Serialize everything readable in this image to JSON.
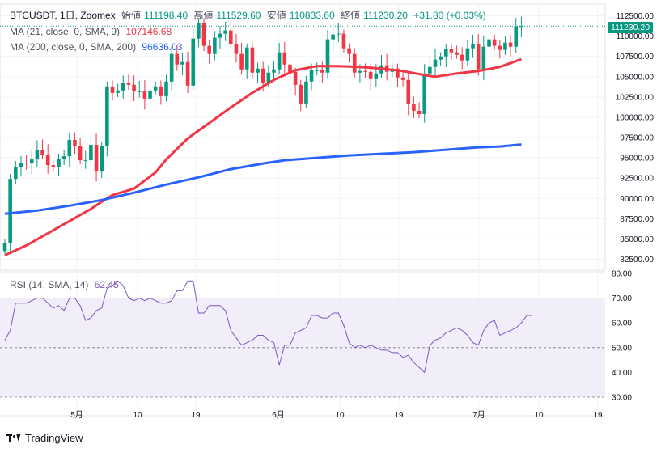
{
  "header": {
    "symbol": "BTCUSDT, 1日, Zoomex",
    "open_label": "始値",
    "open": "111198.40",
    "high_label": "高値",
    "high": "111529.60",
    "low_label": "安値",
    "low": "110833.60",
    "close_label": "終値",
    "close": "111230.20",
    "change": "+31.80 (+0.03%)"
  },
  "indicators": {
    "ma21": {
      "label": "MA (21, close, 0, SMA, 9)",
      "value": "107146.68",
      "color": "#f23645"
    },
    "ma200": {
      "label": "MA (200, close, 0, SMA, 200)",
      "value": "96636.03",
      "color": "#2962ff"
    },
    "rsi": {
      "label": "RSI (14, SMA, 14)",
      "value": "62.45",
      "color": "#7e57c2"
    }
  },
  "price_tag": "111230.20",
  "brand": "TradingView",
  "colors": {
    "up": "#089981",
    "down": "#f23645",
    "grid": "#f0f3fa",
    "rsi_band": "#ede7f6"
  },
  "chart_data": [
    {
      "type": "candlestick",
      "title": "BTCUSDT, 1日, Zoomex",
      "x_tick_labels": [
        "5月",
        "10",
        "19",
        "6月",
        "10",
        "19",
        "7月",
        "10",
        "19"
      ],
      "y_tick_labels": [
        "82500.00",
        "85000.00",
        "87500.00",
        "90000.00",
        "92500.00",
        "95000.00",
        "97500.00",
        "100000.00",
        "102500.00",
        "105000.00",
        "107500.00",
        "110000.00",
        "112500.00"
      ],
      "ylim": [
        81000,
        113000
      ],
      "last_price": 111230.2,
      "closes": [
        84500,
        92400,
        93900,
        94400,
        94300,
        94800,
        96000,
        95300,
        94100,
        93900,
        94900,
        95200,
        97200,
        96400,
        94700,
        94700,
        96600,
        93300,
        96500,
        103800,
        103000,
        103300,
        104200,
        104000,
        103200,
        103200,
        102300,
        103300,
        103800,
        102600,
        104400,
        107800,
        106500,
        106800,
        103900,
        109700,
        111600,
        108800,
        107800,
        109800,
        110300,
        110700,
        109000,
        107800,
        105900,
        108600,
        105500,
        106000,
        104200,
        105500,
        105900,
        108000,
        106500,
        105600,
        104000,
        101700,
        104400,
        105800,
        105800,
        105500,
        109600,
        110200,
        110300,
        108500,
        107800,
        105500,
        105700,
        105600,
        104700,
        105400,
        106400,
        105600,
        106000,
        104900,
        104600,
        101600,
        100800,
        100400,
        105400,
        106200,
        107100,
        107500,
        108400,
        108000,
        107700,
        107000,
        108500,
        109000,
        105900,
        108700,
        109600,
        108800,
        108300,
        109200,
        108700,
        111200,
        111230
      ],
      "series": [
        {
          "name": "MA (21, close, 0, SMA, 9)",
          "values": [
            [
              0,
              83000
            ],
            [
              4,
              84200
            ],
            [
              8,
              85700
            ],
            [
              12,
              87200
            ],
            [
              16,
              88700
            ],
            [
              18,
              89600
            ],
            [
              20,
              90400
            ],
            [
              24,
              91200
            ],
            [
              28,
              93200
            ],
            [
              30,
              94800
            ],
            [
              34,
              97400
            ],
            [
              38,
              99300
            ],
            [
              42,
              101200
            ],
            [
              46,
              103000
            ],
            [
              50,
              104600
            ],
            [
              54,
              105800
            ],
            [
              58,
              106300
            ],
            [
              62,
              106300
            ],
            [
              66,
              106200
            ],
            [
              70,
              106000
            ],
            [
              74,
              105700
            ],
            [
              78,
              105200
            ],
            [
              80,
              105000
            ],
            [
              84,
              105400
            ],
            [
              88,
              105700
            ],
            [
              92,
              106200
            ],
            [
              96,
              107150
            ]
          ]
        },
        {
          "name": "MA (200, close, 0, SMA, 200)",
          "values": [
            [
              0,
              88100
            ],
            [
              6,
              88500
            ],
            [
              12,
              89100
            ],
            [
              18,
              89800
            ],
            [
              24,
              90700
            ],
            [
              30,
              91700
            ],
            [
              36,
              92600
            ],
            [
              42,
              93600
            ],
            [
              48,
              94300
            ],
            [
              52,
              94700
            ],
            [
              56,
              94900
            ],
            [
              60,
              95100
            ],
            [
              64,
              95300
            ],
            [
              70,
              95500
            ],
            [
              76,
              95700
            ],
            [
              80,
              95900
            ],
            [
              84,
              96100
            ],
            [
              88,
              96300
            ],
            [
              92,
              96400
            ],
            [
              96,
              96640
            ]
          ]
        }
      ]
    },
    {
      "type": "line",
      "title": "RSI (14, SMA, 14)",
      "y_tick_labels": [
        "30.00",
        "40.00",
        "50.00",
        "60.00",
        "70.00",
        "80.00"
      ],
      "ylim": [
        28,
        80
      ],
      "band": [
        30,
        70
      ],
      "midline": 50,
      "series": [
        {
          "name": "RSI (14, SMA, 14)",
          "values": [
            53,
            57,
            68,
            68,
            68,
            69,
            70,
            70,
            68,
            66,
            67,
            65,
            70,
            70,
            67,
            61,
            62,
            65,
            66,
            74,
            75,
            77,
            75,
            70,
            69,
            70,
            69,
            70,
            69,
            68,
            68,
            69,
            73,
            73,
            77,
            77,
            64,
            64,
            67,
            67,
            67,
            65,
            57,
            54,
            51,
            52,
            53,
            55,
            55,
            53,
            52,
            43,
            51,
            51,
            56,
            57,
            58,
            63,
            63,
            62,
            62,
            64,
            64,
            59,
            52,
            50,
            51,
            50,
            51,
            50,
            49,
            49,
            48,
            48,
            46,
            47,
            44,
            42,
            40,
            51,
            53,
            54,
            56,
            57,
            58,
            57,
            55,
            52,
            51,
            57,
            60,
            61,
            55,
            56,
            57,
            58,
            60,
            63,
            63
          ]
        }
      ]
    }
  ]
}
